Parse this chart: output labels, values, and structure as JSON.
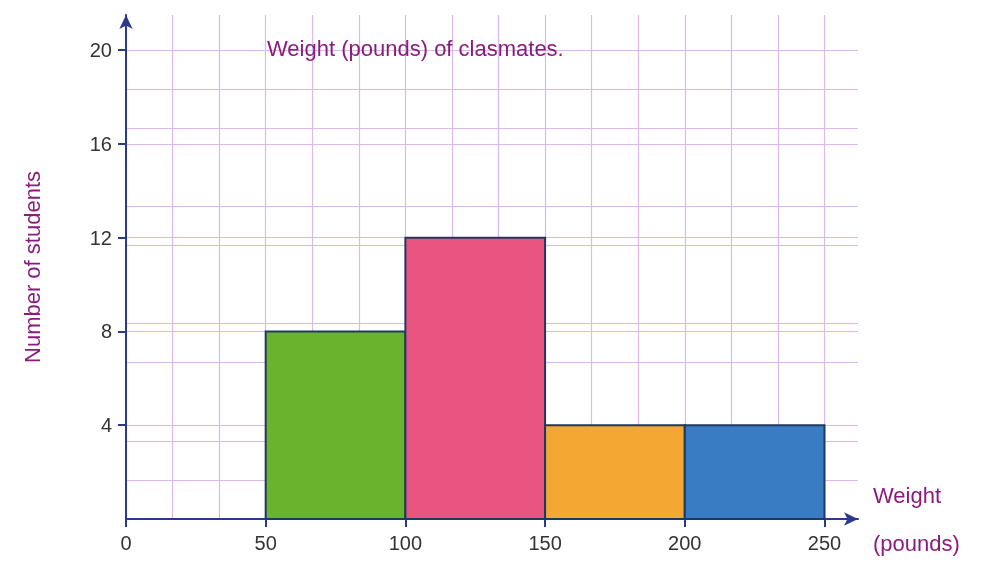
{
  "chart_data": {
    "type": "histogram",
    "title": "Weight (pounds) of clasmates.",
    "xlabel": "Weight\n(pounds)",
    "ylabel": "Number of students",
    "bins": [
      50,
      100,
      150,
      200,
      250
    ],
    "values": [
      8,
      12,
      4,
      4
    ],
    "colors": [
      "#6ab42d",
      "#e95480",
      "#f5a733",
      "#3a7cc4"
    ],
    "xlim": [
      0,
      262
    ],
    "xticks": [
      0,
      50,
      100,
      150,
      200,
      250
    ],
    "ylim": [
      0,
      21.5
    ],
    "yticks": [
      4,
      8,
      12,
      16,
      20
    ],
    "grid": true
  }
}
